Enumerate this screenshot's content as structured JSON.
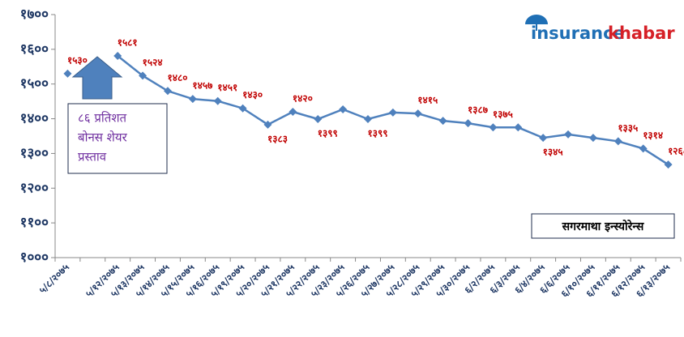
{
  "chart_data": {
    "type": "line",
    "categories": [
      "५/८/२०७५",
      null,
      "५/१२/२०७५",
      "५/१३/२०७५",
      "५/१४/२०७५",
      "५/१५/२०७५",
      "५/१६/२०७५",
      "५/१९/२०७५",
      "५/२०/२०७५",
      "५/२१/२०७५",
      "५/२२/२०७५",
      "५/२३/२०७५",
      "५/२६/२०७५",
      "५/२७/२०७५",
      "५/२८/२०७५",
      "५/२९/२०७५",
      "५/३०/२०७५",
      "६/२/२०७५",
      "६/३/२०७५",
      "६/४/२०७५",
      "६/६/२०७५",
      "६/१०/२०७५",
      "६/११/२०७५",
      "६/१२/२०७५",
      "६/१३/२०७५"
    ],
    "values": [
      1530,
      null,
      1581,
      1524,
      1480,
      1457,
      1451,
      1430,
      1383,
      1420,
      1399,
      1427,
      1399,
      1418,
      1415,
      1394,
      1387,
      1375,
      1375,
      1345,
      1355,
      1345,
      1335,
      1314,
      1268
    ],
    "value_labels": [
      "१५३०",
      null,
      "१५८१",
      "१५२४",
      "१४८०",
      "१४५७",
      "१४५१",
      "१४३०",
      "१३८३",
      "१४२०",
      "१३९९",
      null,
      "१३९९",
      null,
      "१४१५",
      null,
      "१३८७",
      "१३७५",
      null,
      "१३४५",
      null,
      null,
      "१३३५",
      "१३१४",
      "१२६८"
    ],
    "color": "#4f81bd",
    "ylim": [
      1000,
      1700
    ],
    "yticks": [
      {
        "value": 1000,
        "label": "१०००"
      },
      {
        "value": 1100,
        "label": "११००"
      },
      {
        "value": 1200,
        "label": "१२००"
      },
      {
        "value": 1300,
        "label": "१३००"
      },
      {
        "value": 1400,
        "label": "१४००"
      },
      {
        "value": 1500,
        "label": "१५००"
      },
      {
        "value": 1600,
        "label": "१६००"
      },
      {
        "value": 1700,
        "label": "१७००"
      }
    ],
    "annotations": {
      "bonus": [
        "८६ प्रतिशत",
        "बोनस शेयर",
        "प्रस्ताव"
      ],
      "company": "सगरमाथा इन्स्योरेन्स"
    },
    "logo": {
      "left": "insurance",
      "right": "khabar"
    }
  }
}
